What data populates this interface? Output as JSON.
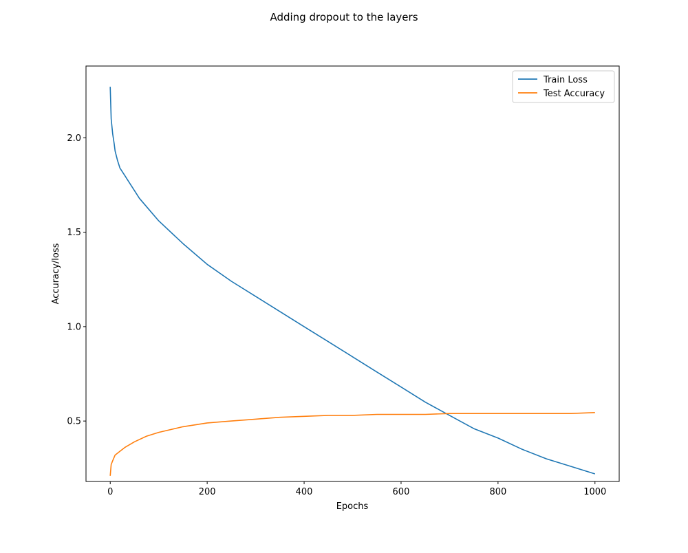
{
  "chart_data": {
    "type": "line",
    "title": "Adding dropout to the layers",
    "xlabel": "Epochs",
    "ylabel": "Accuracy/loss",
    "xlim": [
      -50,
      1050
    ],
    "ylim": [
      0.18,
      2.38
    ],
    "xticks": [
      0,
      200,
      400,
      600,
      800,
      1000
    ],
    "yticks": [
      0.5,
      1.0,
      1.5,
      2.0
    ],
    "ytick_labels": [
      "0.5",
      "1.0",
      "1.5",
      "2.0"
    ],
    "grid": false,
    "legend_position": "upper right",
    "series": [
      {
        "name": "Train Loss",
        "color": "#1f77b4",
        "x": [
          0,
          2,
          5,
          8,
          10,
          15,
          20,
          30,
          40,
          50,
          60,
          80,
          100,
          150,
          200,
          250,
          300,
          350,
          400,
          450,
          500,
          550,
          600,
          650,
          700,
          750,
          800,
          850,
          900,
          950,
          1000
        ],
        "y": [
          2.27,
          2.1,
          2.02,
          1.97,
          1.93,
          1.88,
          1.84,
          1.8,
          1.76,
          1.72,
          1.68,
          1.62,
          1.56,
          1.44,
          1.33,
          1.24,
          1.16,
          1.08,
          1.0,
          0.92,
          0.84,
          0.76,
          0.68,
          0.6,
          0.53,
          0.46,
          0.41,
          0.35,
          0.3,
          0.26,
          0.22
        ]
      },
      {
        "name": "Test Accuracy",
        "color": "#ff7f0e",
        "x": [
          0,
          2,
          5,
          10,
          20,
          30,
          50,
          75,
          100,
          150,
          200,
          250,
          300,
          350,
          400,
          450,
          500,
          550,
          600,
          650,
          700,
          750,
          800,
          850,
          900,
          950,
          1000
        ],
        "y": [
          0.21,
          0.27,
          0.29,
          0.32,
          0.34,
          0.36,
          0.39,
          0.42,
          0.44,
          0.47,
          0.49,
          0.5,
          0.51,
          0.52,
          0.525,
          0.53,
          0.53,
          0.535,
          0.535,
          0.535,
          0.54,
          0.54,
          0.54,
          0.54,
          0.54,
          0.54,
          0.545
        ]
      }
    ]
  }
}
